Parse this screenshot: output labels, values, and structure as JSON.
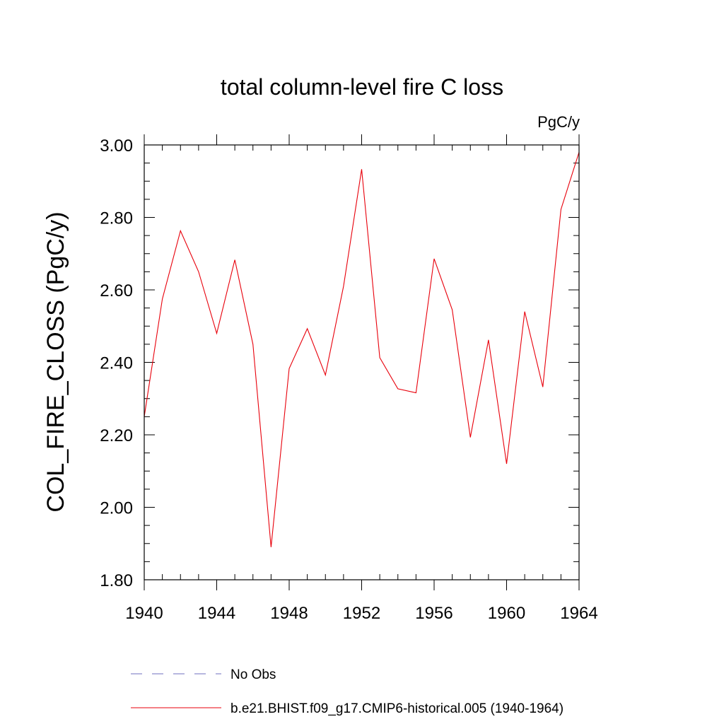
{
  "chart_data": {
    "type": "line",
    "title": "total column-level fire C loss",
    "units_label": "PgC/y",
    "ylabel": "COL_FIRE_CLOSS  (PgC/y)",
    "xlabel": "",
    "xlim": [
      1940,
      1964
    ],
    "ylim": [
      1.8,
      3.0
    ],
    "x_ticks": [
      1940,
      1944,
      1948,
      1952,
      1956,
      1960,
      1964
    ],
    "x_tick_labels": [
      "1940",
      "1944",
      "1948",
      "1952",
      "1956",
      "1960",
      "1964"
    ],
    "y_ticks": [
      1.8,
      2.0,
      2.2,
      2.4,
      2.6,
      2.8,
      3.0
    ],
    "y_tick_labels": [
      "1.80",
      "2.00",
      "2.20",
      "2.40",
      "2.60",
      "2.80",
      "3.00"
    ],
    "series": [
      {
        "name": "b.e21.BHIST.f09_g17.CMIP6-historical.005 (1940-1964)",
        "color": "#e8000b",
        "dash": "solid",
        "x": [
          1940,
          1941,
          1942,
          1943,
          1944,
          1945,
          1946,
          1947,
          1948,
          1949,
          1950,
          1951,
          1952,
          1953,
          1954,
          1955,
          1956,
          1957,
          1958,
          1959,
          1960,
          1961,
          1962,
          1963,
          1964
        ],
        "values": [
          2.25,
          2.575,
          2.763,
          2.65,
          2.48,
          2.683,
          2.45,
          1.89,
          2.383,
          2.493,
          2.365,
          2.61,
          2.933,
          2.413,
          2.327,
          2.316,
          2.686,
          2.545,
          2.193,
          2.462,
          2.12,
          2.54,
          2.332,
          2.822,
          2.98
        ]
      }
    ],
    "legend": [
      {
        "label": "No Obs",
        "color": "#6f6fbf",
        "dash": "dashed"
      },
      {
        "label": "b.e21.BHIST.f09_g17.CMIP6-historical.005 (1940-1964)",
        "color": "#e8000b",
        "dash": "solid"
      }
    ]
  }
}
